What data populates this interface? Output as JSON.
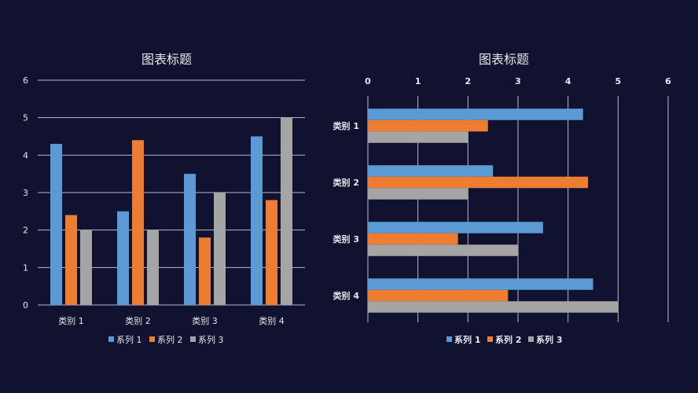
{
  "colors": {
    "background": "#111230",
    "series": [
      "#5b9bd5",
      "#ed7d31",
      "#a5a5a5"
    ],
    "grid": "#b8b9d2"
  },
  "chart_data": [
    {
      "type": "bar",
      "orientation": "vertical",
      "title": "图表标题",
      "categories": [
        "类别 1",
        "类别 2",
        "类别 3",
        "类别 4"
      ],
      "series": [
        {
          "name": "系列 1",
          "values": [
            4.3,
            2.5,
            3.5,
            4.5
          ]
        },
        {
          "name": "系列 2",
          "values": [
            2.4,
            4.4,
            1.8,
            2.8
          ]
        },
        {
          "name": "系列 3",
          "values": [
            2,
            2,
            3,
            5
          ]
        }
      ],
      "ylim": [
        0,
        6
      ],
      "yticks": [
        "0",
        "1",
        "2",
        "3",
        "4",
        "5",
        "6"
      ],
      "grid": true,
      "legend": "bottom"
    },
    {
      "type": "bar",
      "orientation": "horizontal",
      "title": "图表标题",
      "categories": [
        "类别 1",
        "类别 2",
        "类别 3",
        "类别 4"
      ],
      "series": [
        {
          "name": "系列 1",
          "values": [
            4.3,
            2.5,
            3.5,
            4.5
          ]
        },
        {
          "name": "系列 2",
          "values": [
            2.4,
            4.4,
            1.8,
            2.8
          ]
        },
        {
          "name": "系列 3",
          "values": [
            2,
            2,
            3,
            5
          ]
        }
      ],
      "xlim": [
        0,
        6
      ],
      "xticks": [
        "0",
        "1",
        "2",
        "3",
        "4",
        "5",
        "6"
      ],
      "xaxis_position": "top",
      "grid": true,
      "legend": "bottom"
    }
  ]
}
